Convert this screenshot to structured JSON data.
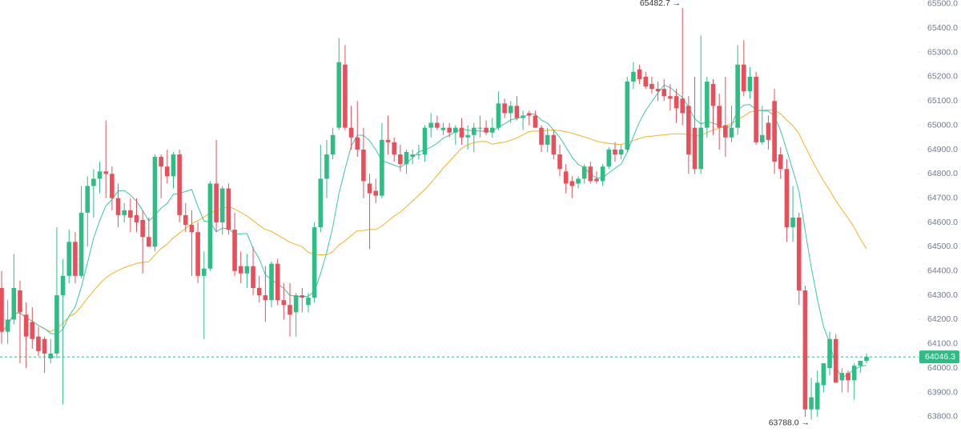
{
  "chart_data": {
    "type": "candlestick",
    "up_color": "#2ebd85",
    "down_color": "#e94f5b",
    "ylim": [
      63704,
      65516
    ],
    "yticks": [
      {
        "value": 63800,
        "label": "63800.0"
      },
      {
        "value": 63900,
        "label": "63900.0"
      },
      {
        "value": 64000,
        "label": "64000.0"
      },
      {
        "value": 64100,
        "label": "64100.0"
      },
      {
        "value": 64200,
        "label": "64200.0"
      },
      {
        "value": 64300,
        "label": "64300.0"
      },
      {
        "value": 64400,
        "label": "64400.0"
      },
      {
        "value": 64500,
        "label": "64500.0"
      },
      {
        "value": 64600,
        "label": "64600.0"
      },
      {
        "value": 64700,
        "label": "64700.0"
      },
      {
        "value": 64800,
        "label": "64800.0"
      },
      {
        "value": 64900,
        "label": "64900.0"
      },
      {
        "value": 65000,
        "label": "65000.0"
      },
      {
        "value": 65100,
        "label": "65100.0"
      },
      {
        "value": 65200,
        "label": "65200.0"
      },
      {
        "value": 65300,
        "label": "65300.0"
      },
      {
        "value": 65400,
        "label": "65400.0"
      },
      {
        "value": 65500,
        "label": "65500.0"
      }
    ],
    "high_marker": {
      "value": 65482.7,
      "label": "65482.7 →"
    },
    "low_marker": {
      "value": 63788,
      "label": "63788.0 →"
    },
    "last_price": {
      "value": 64046.3,
      "label": "64046.3"
    },
    "candles": [
      [
        64330,
        64400,
        64100,
        64150
      ],
      [
        64150,
        64280,
        64100,
        64200
      ],
      [
        64200,
        64470,
        64180,
        64330
      ],
      [
        64320,
        64360,
        64020,
        64230
      ],
      [
        64220,
        64270,
        64000,
        64130
      ],
      [
        64190,
        64250,
        64080,
        64120
      ],
      [
        64130,
        64170,
        64050,
        64070
      ],
      [
        64120,
        64130,
        63980,
        64060
      ],
      [
        64040,
        64120,
        64020,
        64060
      ],
      [
        64060,
        64580,
        64040,
        64300
      ],
      [
        64300,
        64450,
        63850,
        64380
      ],
      [
        64380,
        64570,
        64350,
        64520
      ],
      [
        64520,
        64560,
        64350,
        64380
      ],
      [
        64380,
        64750,
        64370,
        64640
      ],
      [
        64640,
        64790,
        64500,
        64750
      ],
      [
        64750,
        64820,
        64620,
        64780
      ],
      [
        64780,
        64850,
        64720,
        64810
      ],
      [
        64810,
        65020,
        64700,
        64800
      ],
      [
        64800,
        64830,
        64650,
        64700
      ],
      [
        64700,
        64760,
        64580,
        64630
      ],
      [
        64630,
        64680,
        64600,
        64650
      ],
      [
        64650,
        64700,
        64560,
        64620
      ],
      [
        64630,
        64700,
        64560,
        64600
      ],
      [
        64610,
        64650,
        64390,
        64540
      ],
      [
        64540,
        64620,
        64500,
        64500
      ],
      [
        64500,
        64880,
        64480,
        64870
      ],
      [
        64870,
        64880,
        64700,
        64830
      ],
      [
        64830,
        64900,
        64760,
        64790
      ],
      [
        64790,
        64890,
        64740,
        64880
      ],
      [
        64880,
        64900,
        64600,
        64630
      ],
      [
        64630,
        64680,
        64560,
        64590
      ],
      [
        64590,
        64650,
        64380,
        64560
      ],
      [
        64560,
        64600,
        64350,
        64380
      ],
      [
        64380,
        64480,
        64120,
        64410
      ],
      [
        64410,
        64770,
        64400,
        64760
      ],
      [
        64760,
        64940,
        64560,
        64600
      ],
      [
        64600,
        64750,
        64550,
        64740
      ],
      [
        64740,
        64760,
        64550,
        64570
      ],
      [
        64570,
        64640,
        64380,
        64400
      ],
      [
        64420,
        64480,
        64350,
        64390
      ],
      [
        64390,
        64470,
        64330,
        64420
      ],
      [
        64420,
        64500,
        64300,
        64330
      ],
      [
        64330,
        64380,
        64270,
        64300
      ],
      [
        64300,
        64420,
        64190,
        64280
      ],
      [
        64280,
        64440,
        64250,
        64430
      ],
      [
        64430,
        64450,
        64260,
        64280
      ],
      [
        64280,
        64350,
        64200,
        64260
      ],
      [
        64260,
        64350,
        64130,
        64220
      ],
      [
        64230,
        64310,
        64130,
        64300
      ],
      [
        64300,
        64330,
        64230,
        64290
      ],
      [
        64260,
        64310,
        64230,
        64290
      ],
      [
        64290,
        64600,
        64270,
        64580
      ],
      [
        64580,
        64920,
        64560,
        64780
      ],
      [
        64780,
        64940,
        64700,
        64880
      ],
      [
        64880,
        64990,
        64860,
        64960
      ],
      [
        64990,
        65360,
        64980,
        65260
      ],
      [
        65250,
        65330,
        64980,
        64990
      ],
      [
        64990,
        65080,
        64900,
        64950
      ],
      [
        64950,
        65100,
        64870,
        64900
      ],
      [
        64900,
        64990,
        64700,
        64770
      ],
      [
        64760,
        64800,
        64490,
        64720
      ],
      [
        64730,
        64780,
        64680,
        64710
      ],
      [
        64710,
        65010,
        64700,
        64940
      ],
      [
        64940,
        65040,
        64880,
        64930
      ],
      [
        64930,
        64950,
        64850,
        64880
      ],
      [
        64880,
        64920,
        64810,
        64840
      ],
      [
        64840,
        64900,
        64800,
        64890
      ],
      [
        64870,
        64900,
        64840,
        64880
      ],
      [
        64880,
        64920,
        64860,
        64880
      ],
      [
        64880,
        65000,
        64850,
        64990
      ],
      [
        64990,
        65050,
        64950,
        65010
      ],
      [
        65010,
        65040,
        64980,
        64990
      ],
      [
        64980,
        65010,
        64960,
        64990
      ],
      [
        64990,
        65010,
        64950,
        64970
      ],
      [
        64970,
        65000,
        64920,
        64990
      ],
      [
        64990,
        65030,
        64920,
        64950
      ],
      [
        64950,
        65000,
        64900,
        64960
      ],
      [
        64960,
        65010,
        64890,
        64990
      ],
      [
        64990,
        65040,
        64950,
        64990
      ],
      [
        64990,
        65020,
        64960,
        64970
      ],
      [
        64970,
        65030,
        64950,
        64990
      ],
      [
        64990,
        65140,
        64980,
        65090
      ],
      [
        65090,
        65110,
        65030,
        65050
      ],
      [
        65050,
        65100,
        65010,
        65080
      ],
      [
        65080,
        65120,
        65020,
        65030
      ],
      [
        65030,
        65060,
        64980,
        65040
      ],
      [
        65050,
        65060,
        65000,
        65040
      ],
      [
        65040,
        65060,
        64990,
        64990
      ],
      [
        64990,
        65000,
        64890,
        64920
      ],
      [
        64920,
        64990,
        64890,
        64960
      ],
      [
        64960,
        64980,
        64860,
        64880
      ],
      [
        64880,
        64920,
        64790,
        64820
      ],
      [
        64810,
        64840,
        64720,
        64760
      ],
      [
        64770,
        64790,
        64700,
        64750
      ],
      [
        64760,
        64790,
        64740,
        64780
      ],
      [
        64780,
        64840,
        64760,
        64830
      ],
      [
        64830,
        64850,
        64760,
        64770
      ],
      [
        64780,
        64810,
        64760,
        64770
      ],
      [
        64770,
        64840,
        64750,
        64830
      ],
      [
        64830,
        64910,
        64820,
        64900
      ],
      [
        64900,
        64930,
        64850,
        64880
      ],
      [
        64880,
        64920,
        64860,
        64900
      ],
      [
        64900,
        65200,
        64890,
        65180
      ],
      [
        65180,
        65260,
        65150,
        65220
      ],
      [
        65230,
        65250,
        65170,
        65190
      ],
      [
        65200,
        65220,
        65150,
        65160
      ],
      [
        65170,
        65200,
        65130,
        65150
      ],
      [
        65150,
        65180,
        65100,
        65140
      ],
      [
        65150,
        65190,
        65100,
        65120
      ],
      [
        65120,
        65170,
        65060,
        65110
      ],
      [
        65120,
        65150,
        65010,
        65070
      ],
      [
        65110,
        65482.7,
        65000,
        65050
      ],
      [
        65080,
        65120,
        64800,
        64880
      ],
      [
        64990,
        65200,
        64800,
        64820
      ],
      [
        64820,
        65370,
        64800,
        64990
      ],
      [
        64990,
        65200,
        64950,
        65180
      ],
      [
        65170,
        65190,
        64960,
        65080
      ],
      [
        65080,
        65130,
        64900,
        64990
      ],
      [
        65000,
        65200,
        64870,
        64950
      ],
      [
        64950,
        65080,
        64930,
        64990
      ],
      [
        64990,
        65330,
        64960,
        65250
      ],
      [
        65250,
        65350,
        65120,
        65140
      ],
      [
        65140,
        65240,
        65110,
        65200
      ],
      [
        65200,
        65220,
        64920,
        64930
      ],
      [
        64930,
        65080,
        64920,
        64960
      ],
      [
        65010,
        65040,
        64900,
        64940
      ],
      [
        65100,
        65150,
        64800,
        64850
      ],
      [
        64880,
        64910,
        64780,
        64820
      ],
      [
        64820,
        64860,
        64520,
        64580
      ],
      [
        64580,
        64750,
        64520,
        64620
      ],
      [
        64620,
        64640,
        64260,
        64320
      ],
      [
        64320,
        64340,
        63800,
        63830
      ],
      [
        63830,
        63960,
        63788,
        63880
      ],
      [
        63830,
        63990,
        63800,
        63940
      ],
      [
        63930,
        64020,
        63900,
        64020
      ],
      [
        64000,
        64150,
        63970,
        64120
      ],
      [
        64120,
        64140,
        63940,
        63940
      ],
      [
        63950,
        64000,
        63900,
        63980
      ],
      [
        63980,
        63990,
        63900,
        63950
      ],
      [
        63950,
        64020,
        63870,
        64010
      ],
      [
        64010,
        64030,
        63980,
        64030
      ],
      [
        64030,
        64060,
        64020,
        64046.3
      ]
    ]
  }
}
